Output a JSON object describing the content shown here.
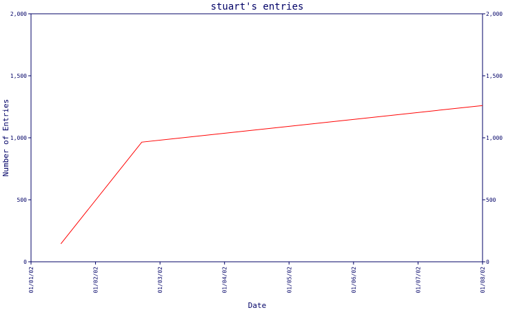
{
  "chart_data": {
    "type": "line",
    "title": "stuart's entries",
    "xlabel": "Date",
    "ylabel": "Number of Entries",
    "x_tick_labels": [
      "01/01/02",
      "01/02/02",
      "01/03/02",
      "01/04/02",
      "01/05/02",
      "01/06/02",
      "01/07/02",
      "01/08/02"
    ],
    "y_tick_labels": [
      "0",
      "500",
      "1,000",
      "1,500",
      "2,000"
    ],
    "y_tick_values": [
      0,
      500,
      1000,
      1500,
      2000
    ],
    "ylim": [
      0,
      2000
    ],
    "xlim": [
      "2002-01-01",
      "2002-08-01"
    ],
    "grid": false,
    "colors": {
      "line": "#ff0000",
      "axis": "#000066"
    },
    "series": [
      {
        "x": [
          "2002-01-15",
          "2002-02-22",
          "2002-08-01"
        ],
        "y": [
          145,
          965,
          1260
        ]
      }
    ]
  }
}
